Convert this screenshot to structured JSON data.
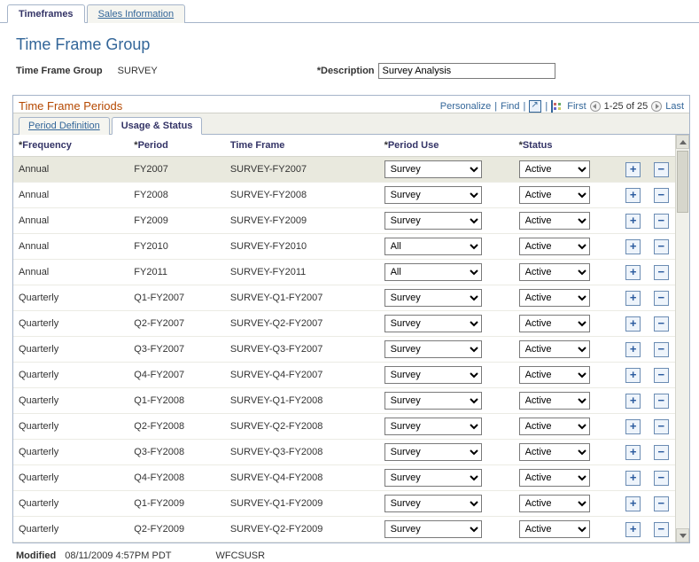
{
  "topTabs": [
    {
      "label": "Timeframes",
      "active": true
    },
    {
      "label": "Sales Information",
      "active": false
    }
  ],
  "pageTitle": "Time Frame Group",
  "form": {
    "groupLabel": "Time Frame Group",
    "groupValue": "SURVEY",
    "descriptionLabel": "Description",
    "descriptionValue": "Survey Analysis"
  },
  "section": {
    "title": "Time Frame Periods",
    "toolbar": {
      "personalize": "Personalize",
      "find": "Find",
      "pager": {
        "first": "First",
        "range": "1-25 of 25",
        "last": "Last"
      }
    },
    "subTabs": [
      {
        "label": "Period Definition",
        "active": false
      },
      {
        "label": "Usage & Status",
        "active": true
      }
    ],
    "columns": {
      "frequency": "Frequency",
      "period": "Period",
      "timeframe": "Time Frame",
      "periodUse": "Period Use",
      "status": "Status"
    },
    "periodUseOptions": [
      "Survey",
      "All"
    ],
    "statusOptions": [
      "Active"
    ],
    "rows": [
      {
        "frequency": "Annual",
        "period": "FY2007",
        "timeframe": "SURVEY-FY2007",
        "use": "Survey",
        "status": "Active",
        "hl": true
      },
      {
        "frequency": "Annual",
        "period": "FY2008",
        "timeframe": "SURVEY-FY2008",
        "use": "Survey",
        "status": "Active"
      },
      {
        "frequency": "Annual",
        "period": "FY2009",
        "timeframe": "SURVEY-FY2009",
        "use": "Survey",
        "status": "Active"
      },
      {
        "frequency": "Annual",
        "period": "FY2010",
        "timeframe": "SURVEY-FY2010",
        "use": "All",
        "status": "Active"
      },
      {
        "frequency": "Annual",
        "period": "FY2011",
        "timeframe": "SURVEY-FY2011",
        "use": "All",
        "status": "Active"
      },
      {
        "frequency": "Quarterly",
        "period": "Q1-FY2007",
        "timeframe": "SURVEY-Q1-FY2007",
        "use": "Survey",
        "status": "Active"
      },
      {
        "frequency": "Quarterly",
        "period": "Q2-FY2007",
        "timeframe": "SURVEY-Q2-FY2007",
        "use": "Survey",
        "status": "Active"
      },
      {
        "frequency": "Quarterly",
        "period": "Q3-FY2007",
        "timeframe": "SURVEY-Q3-FY2007",
        "use": "Survey",
        "status": "Active"
      },
      {
        "frequency": "Quarterly",
        "period": "Q4-FY2007",
        "timeframe": "SURVEY-Q4-FY2007",
        "use": "Survey",
        "status": "Active"
      },
      {
        "frequency": "Quarterly",
        "period": "Q1-FY2008",
        "timeframe": "SURVEY-Q1-FY2008",
        "use": "Survey",
        "status": "Active"
      },
      {
        "frequency": "Quarterly",
        "period": "Q2-FY2008",
        "timeframe": "SURVEY-Q2-FY2008",
        "use": "Survey",
        "status": "Active"
      },
      {
        "frequency": "Quarterly",
        "period": "Q3-FY2008",
        "timeframe": "SURVEY-Q3-FY2008",
        "use": "Survey",
        "status": "Active"
      },
      {
        "frequency": "Quarterly",
        "period": "Q4-FY2008",
        "timeframe": "SURVEY-Q4-FY2008",
        "use": "Survey",
        "status": "Active"
      },
      {
        "frequency": "Quarterly",
        "period": "Q1-FY2009",
        "timeframe": "SURVEY-Q1-FY2009",
        "use": "Survey",
        "status": "Active"
      },
      {
        "frequency": "Quarterly",
        "period": "Q2-FY2009",
        "timeframe": "SURVEY-Q2-FY2009",
        "use": "Survey",
        "status": "Active"
      }
    ]
  },
  "footer": {
    "modifiedLabel": "Modified",
    "modifiedValue": "08/11/2009  4:57PM PDT",
    "user": "WFCSUSR"
  }
}
